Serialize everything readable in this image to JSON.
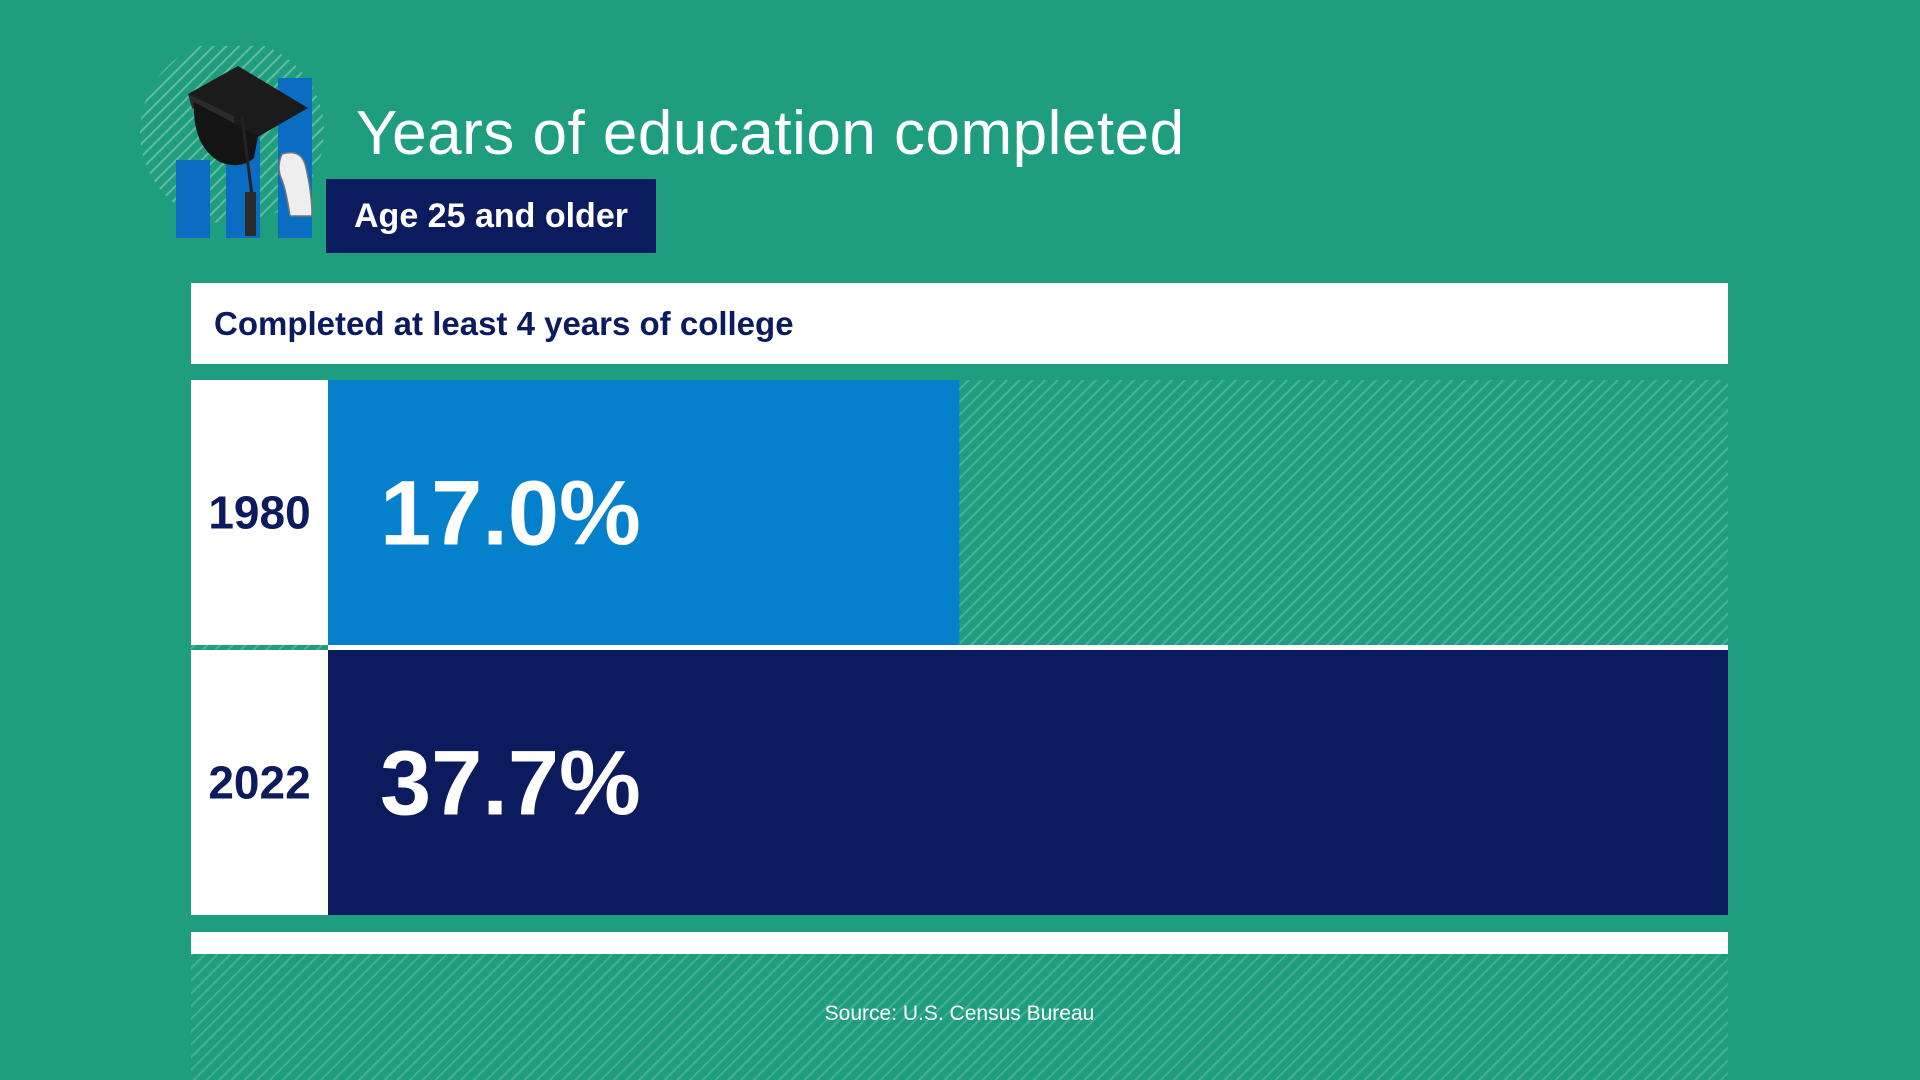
{
  "header": {
    "title": "Years of education completed",
    "subtitle": "Age 25 and older"
  },
  "metric_label": "Completed at least 4 years of college",
  "chart_data": {
    "type": "bar",
    "orientation": "horizontal",
    "categories": [
      "1980",
      "2022"
    ],
    "values": [
      17.0,
      37.7
    ],
    "value_labels": [
      "17.0%",
      "37.7%"
    ],
    "xlim": [
      0,
      37.7
    ],
    "title": "Years of education completed",
    "subtitle": "Age 25 and older",
    "ylabel": "",
    "xlabel": "",
    "grid": false,
    "legend": "none",
    "bar_colors": [
      "#0581cc",
      "#0c1a5e"
    ]
  },
  "source": "Source: U.S. Census Bureau",
  "colors": {
    "background": "#1e9e7e",
    "navy": "#0c1a5e",
    "blue": "#0581cc",
    "white": "#ffffff"
  },
  "icons": [
    "graduation-cap-icon",
    "bar-chart-icon"
  ]
}
